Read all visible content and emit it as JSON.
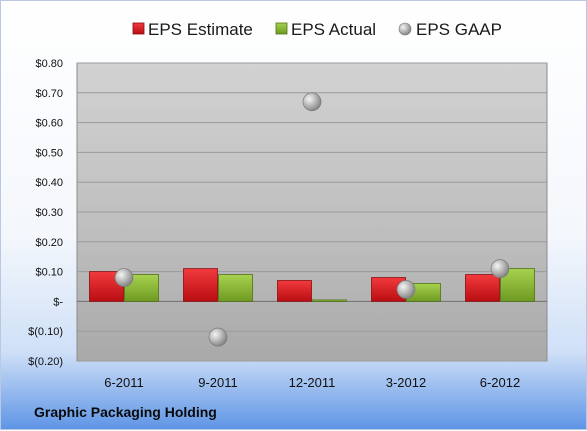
{
  "chart_data": {
    "type": "bar",
    "title": "",
    "xlabel": "",
    "ylabel": "",
    "categories": [
      "6-2011",
      "9-2011",
      "12-2011",
      "3-2012",
      "6-2012"
    ],
    "series": [
      {
        "name": "EPS Estimate",
        "kind": "bar",
        "color": "#e0161b",
        "values": [
          0.1,
          0.11,
          0.07,
          0.08,
          0.09
        ]
      },
      {
        "name": "EPS Actual",
        "kind": "bar",
        "color": "#8cbf35",
        "values": [
          0.09,
          0.09,
          0.005,
          0.06,
          0.11
        ]
      },
      {
        "name": "EPS GAAP",
        "kind": "scatter",
        "color": "#b8b8b8",
        "values": [
          0.08,
          -0.12,
          0.67,
          0.04,
          0.11
        ]
      }
    ],
    "ylim": [
      -0.2,
      0.8
    ],
    "y_ticks": [
      {
        "value": 0.8,
        "label": "$0.80"
      },
      {
        "value": 0.7,
        "label": "$0.70"
      },
      {
        "value": 0.6,
        "label": "$0.60"
      },
      {
        "value": 0.5,
        "label": "$0.50"
      },
      {
        "value": 0.4,
        "label": "$0.40"
      },
      {
        "value": 0.3,
        "label": "$0.30"
      },
      {
        "value": 0.2,
        "label": "$0.20"
      },
      {
        "value": 0.1,
        "label": "$0.10"
      },
      {
        "value": 0.0,
        "label": "$-"
      },
      {
        "value": -0.1,
        "label": "$(0.10)"
      },
      {
        "value": -0.2,
        "label": "$(0.20)"
      }
    ],
    "grid": true,
    "legend_position": "top",
    "footer_text": "Graphic Packaging Holding"
  }
}
